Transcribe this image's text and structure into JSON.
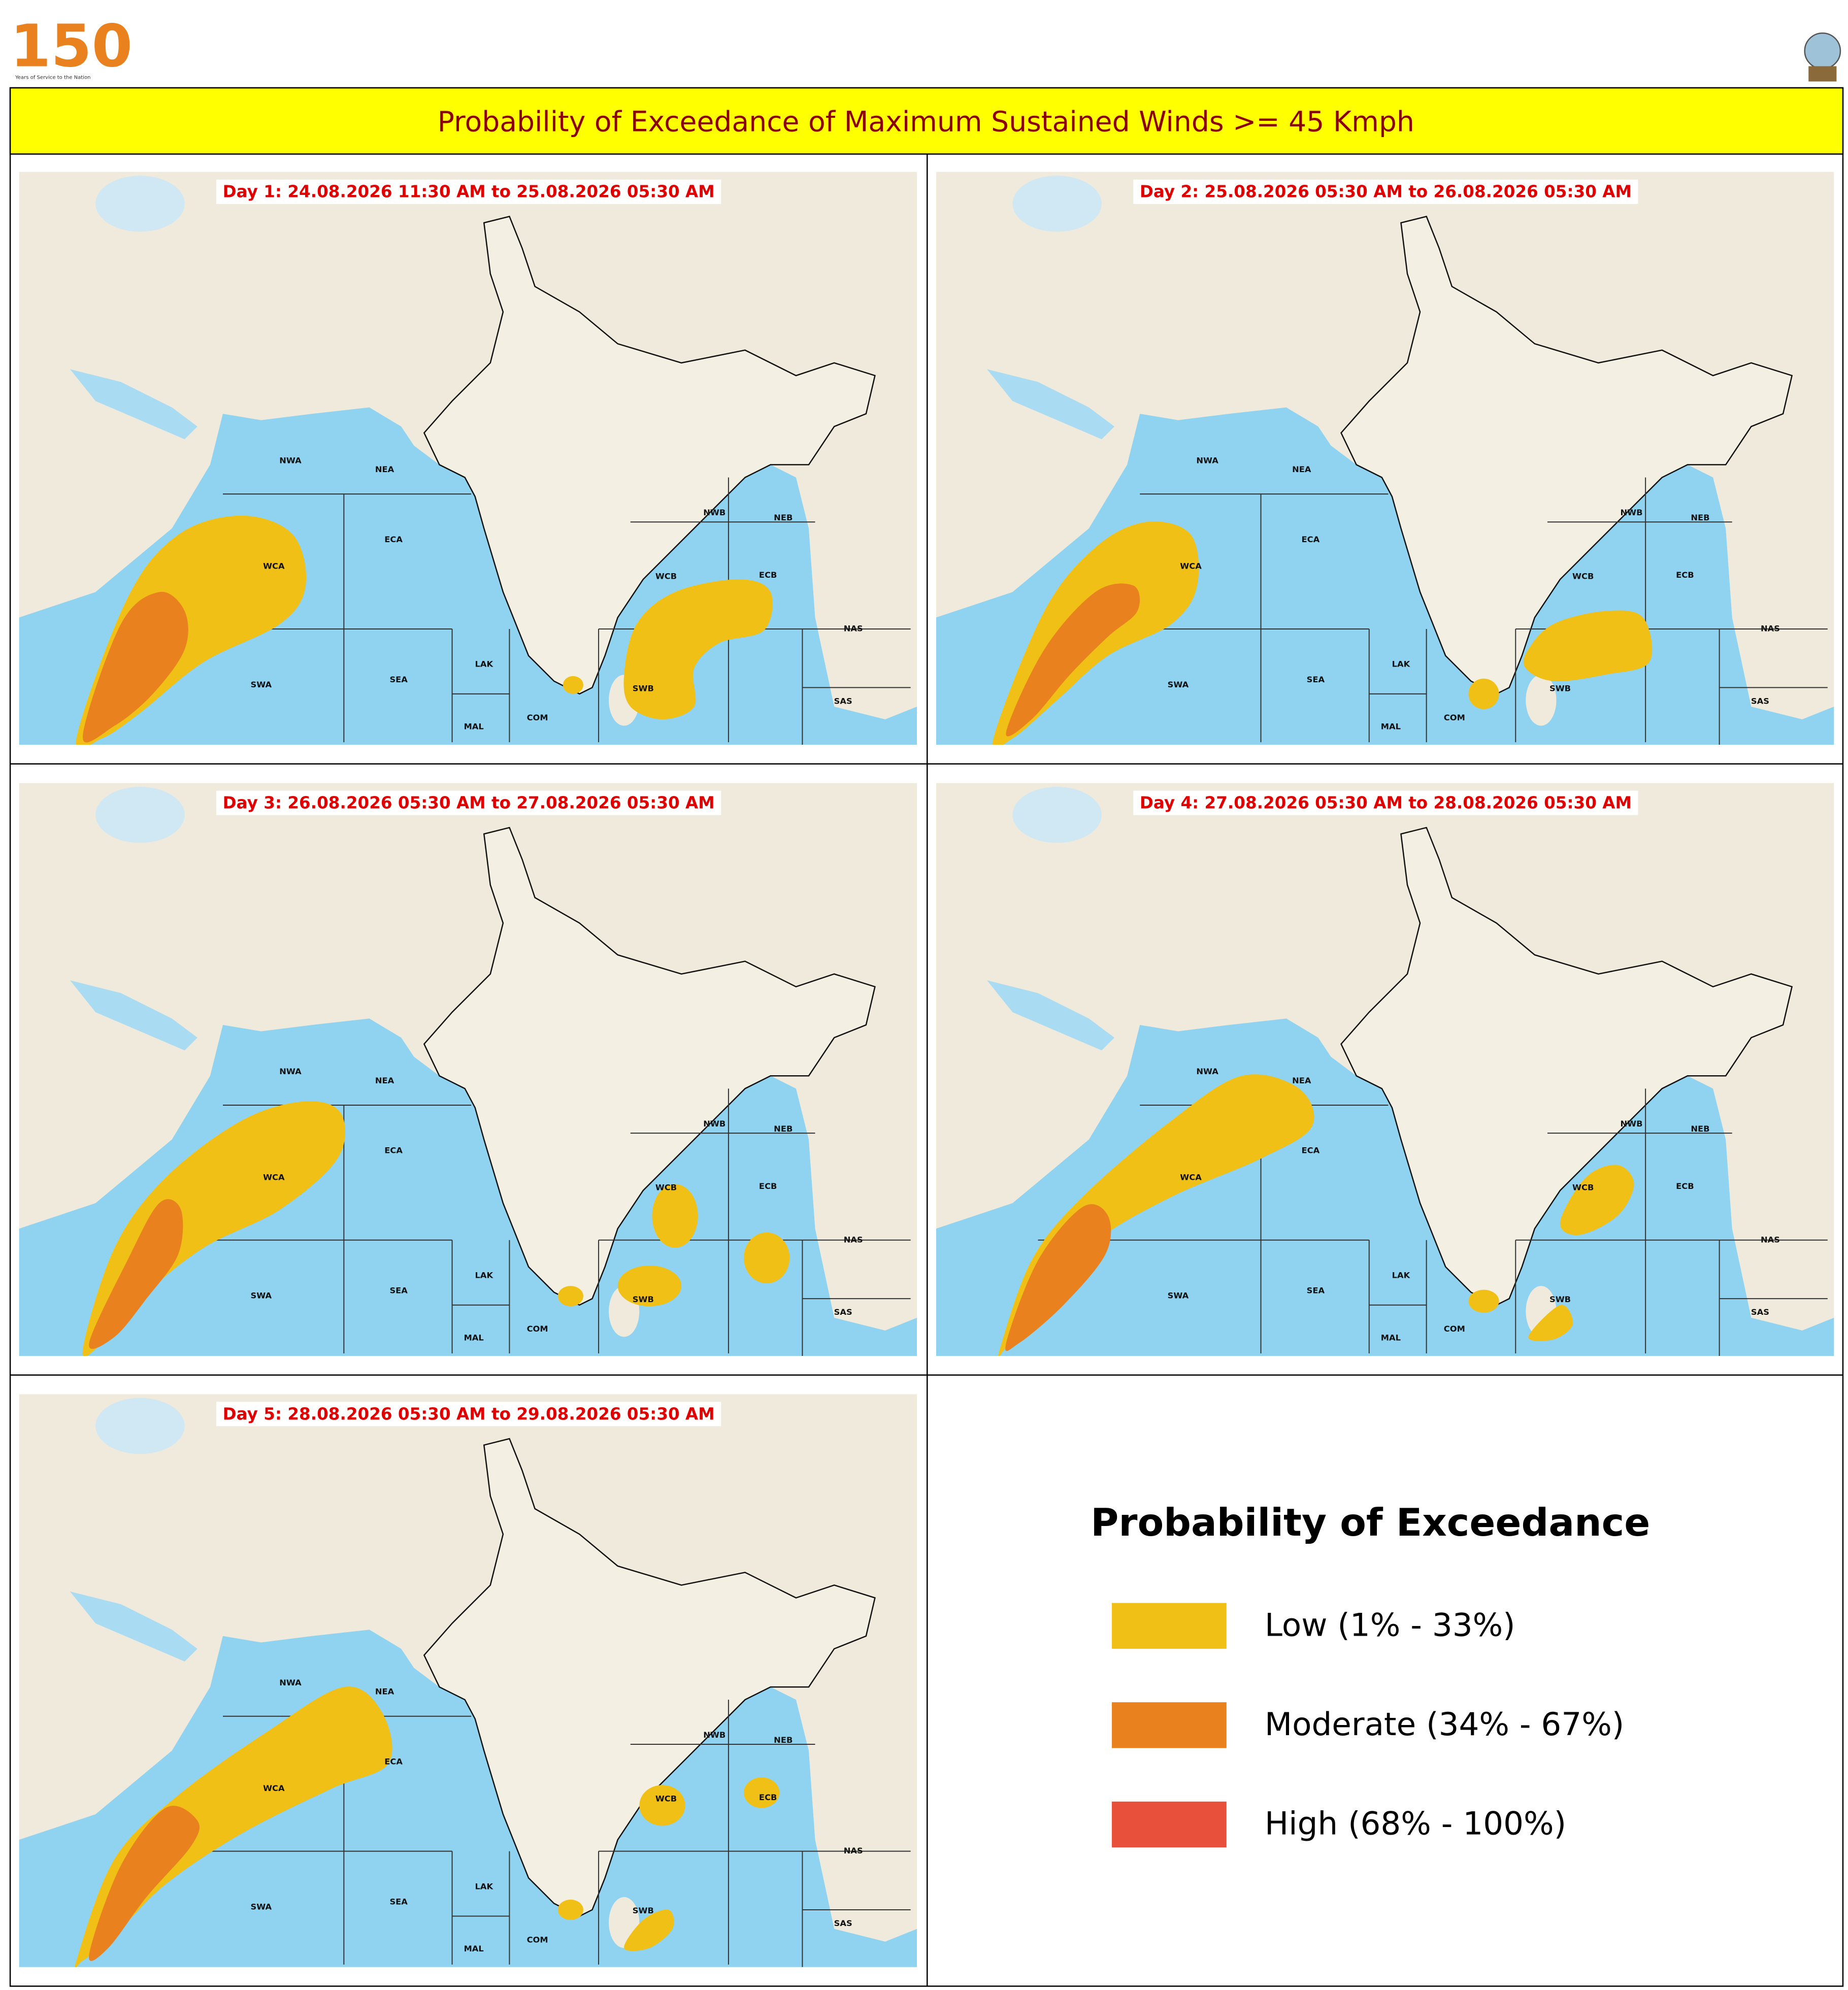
{
  "header": {
    "logo_text": "150",
    "logo_subtitle": "Years of Service to the Nation",
    "title": "Probability of Exceedance of Maximum Sustained Winds >= 45 Kmph"
  },
  "panels": [
    {
      "title": "Day 1: 24.08.2026 11:30 AM to 25.08.2026 05:30 AM"
    },
    {
      "title": "Day 2: 25.08.2026 05:30 AM to 26.08.2026 05:30 AM"
    },
    {
      "title": "Day 3: 26.08.2026 05:30 AM to 27.08.2026 05:30 AM"
    },
    {
      "title": "Day 4: 27.08.2026 05:30 AM to 28.08.2026 05:30 AM"
    },
    {
      "title": "Day 5: 28.08.2026 05:30 AM to 29.08.2026 05:30 AM"
    }
  ],
  "region_labels": [
    "NWA",
    "NEA",
    "ECA",
    "WCA",
    "SWA",
    "SEA",
    "LAK",
    "MAL",
    "COM",
    "SWB",
    "WCB",
    "ECB",
    "NWB",
    "NEB",
    "NAS",
    "SAS"
  ],
  "legend": {
    "title": "Probability of Exceedance",
    "items": [
      {
        "label": "Low (1% - 33%)",
        "color": "#f0c017"
      },
      {
        "label": "Moderate (34% - 67%)",
        "color": "#e8811e"
      },
      {
        "label": "High (68% - 100%)",
        "color": "#e9503b"
      }
    ]
  }
}
